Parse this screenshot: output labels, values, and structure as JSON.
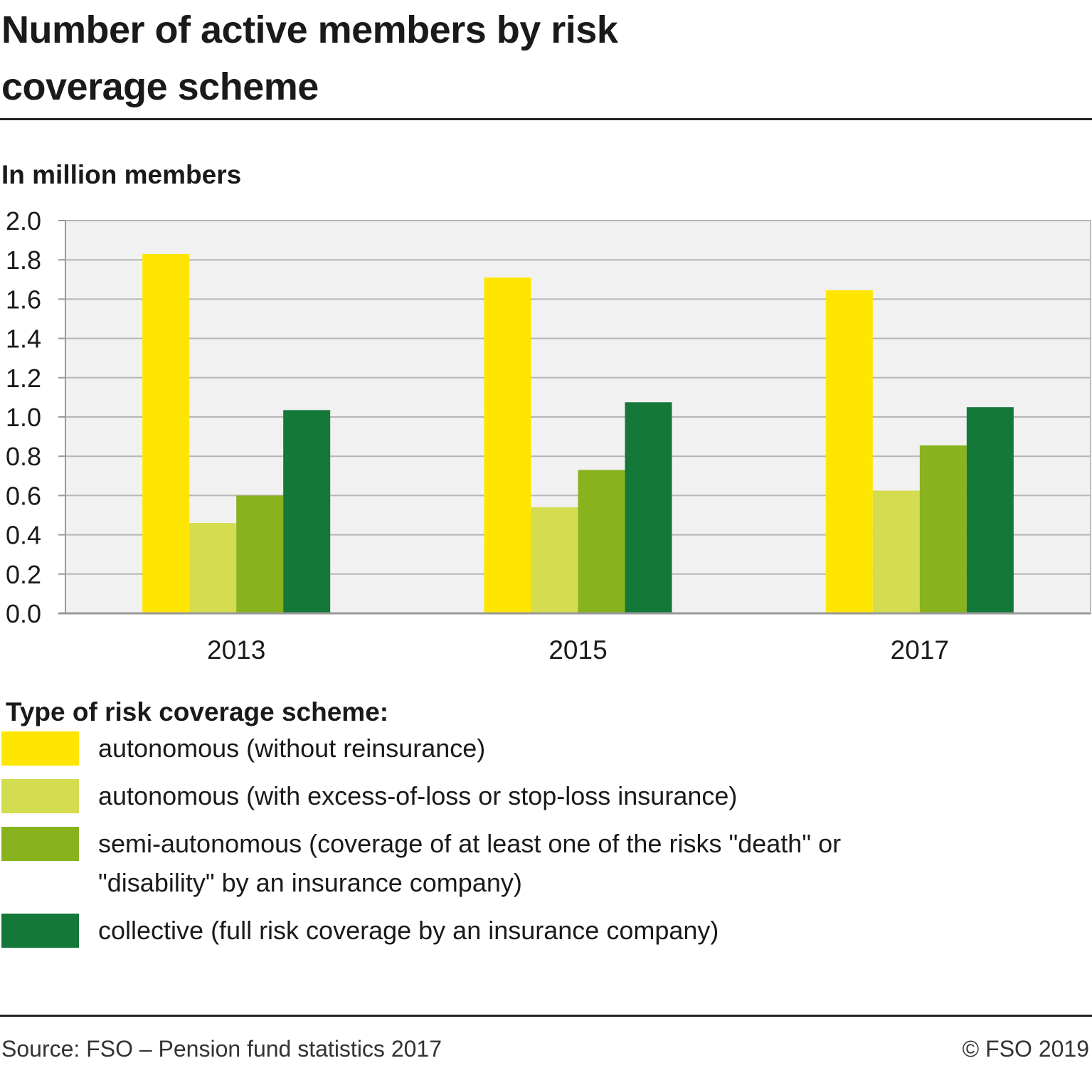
{
  "title": "Number of active members by risk coverage scheme",
  "legend_title": "Type of risk coverage scheme:",
  "footer": {
    "source": "Source: FSO – Pension fund statistics 2017",
    "copyright": "© FSO 2019"
  },
  "chart_data": {
    "type": "bar",
    "subtitle": "In million members",
    "categories": [
      "2013",
      "2015",
      "2017"
    ],
    "ylim": [
      0,
      2.0
    ],
    "yticks": [
      "0.0",
      "0.2",
      "0.4",
      "0.6",
      "0.8",
      "1.0",
      "1.2",
      "1.4",
      "1.6",
      "1.8",
      "2.0"
    ],
    "grid": true,
    "legend_position": "bottom",
    "series": [
      {
        "name": "autonomous (without reinsurance)",
        "color": "#ffe600",
        "values": [
          1.83,
          1.71,
          1.645
        ]
      },
      {
        "name": "autonomous (with excess-of-loss or stop-loss insurance)",
        "color": "#d4dc50",
        "values": [
          0.46,
          0.54,
          0.625
        ]
      },
      {
        "name": "semi-autonomous (coverage of at least one of the risks \"death\" or \"disability\" by an insurance company)",
        "color": "#88b21e",
        "values": [
          0.6,
          0.73,
          0.855
        ]
      },
      {
        "name": "collective (full risk coverage by an insurance company)",
        "color": "#147838",
        "values": [
          1.035,
          1.075,
          1.05
        ]
      }
    ]
  }
}
